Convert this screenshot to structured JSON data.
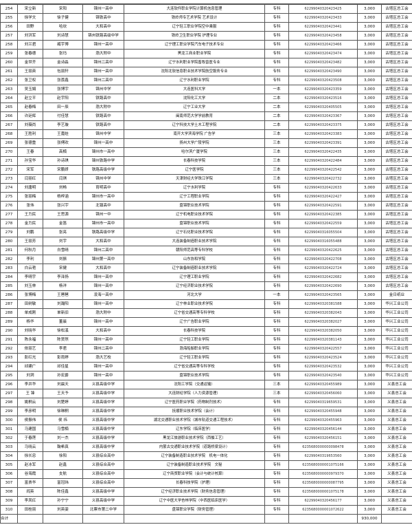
{
  "columns": [
    "no",
    "name",
    "parent",
    "high_school",
    "university_major",
    "level",
    "account",
    "amount",
    "union"
  ],
  "rows": [
    [
      "254",
      "宋立新",
      "宋阳",
      "锦州一高中",
      "大连软件职业学院计算机信息管理",
      "专科",
      "62299040320423425",
      "3,000",
      "古塔区总工会"
    ],
    [
      "255",
      "徐学文",
      "徐子健",
      "锦铁高中",
      "铁岭师专艺术学院 艺术设计",
      "专科",
      "62299040320423433",
      "3,000",
      "古塔区总工会"
    ],
    [
      "256",
      "田野",
      "哈欣",
      "大和高中",
      "辽宁轻工职业学院空中乘服",
      "专科",
      "62299040320423441",
      "3,000",
      "古塔区总工会"
    ],
    [
      "257",
      "刘洪军",
      "刘诗慧",
      "锦州铁路高级中学",
      "铁岭卫生职业学院 护理专业",
      "专科",
      "62299040320423458",
      "3,000",
      "古塔区总工会"
    ],
    [
      "258",
      "刘兰君",
      "臧宇博",
      "锦州一高中",
      "辽宁理工职业学院汽车电子技术专业",
      "专科",
      "62299040320423466",
      "3,000",
      "古塔区总工会"
    ],
    [
      "259",
      "张春德",
      "张玛",
      "渤大附中",
      "黑龙工商业职业学院",
      "专科",
      "62299040320423474",
      "3,000",
      "古塔区总工会"
    ],
    [
      "260",
      "金世齐",
      "金诗淼",
      "锦州二高中",
      "辽宁水利职业学院畜牧兽医专业",
      "专科",
      "62299040320423482",
      "3,000",
      "古塔区总工会"
    ],
    [
      "261",
      "王丽英",
      "包丽轩",
      "锦州一高中",
      "沈阳北软信息职业技术学院航空服务专业",
      "专科",
      "62299040320423490",
      "3,000",
      "古塔区总工会"
    ],
    [
      "262",
      "张卫权",
      "张荔鑫",
      "锦州二高中",
      "辽宁水利职业学院",
      "专科",
      "62299040320423508",
      "3,000",
      "古塔区总工会"
    ],
    [
      "263",
      "吴玉娟",
      "张博宇",
      "锦州中学",
      "大连医科大学",
      "一本",
      "62299040320423359",
      "3,000",
      "古塔区总工会"
    ],
    [
      "264",
      "赵立平",
      "赵宇阳",
      "铁路高中",
      "沈阳化工大学",
      "二本",
      "62299040320423516",
      "3,000",
      "古塔区总工会"
    ],
    [
      "265",
      "赵春梅",
      "田一辰",
      "渤大附中",
      "辽宁工业大学",
      "二本",
      "62299040320405505",
      "3,000",
      "古塔区总工会"
    ],
    [
      "266",
      "许廷辉",
      "付佳慧",
      "铁路高中",
      "闽南师范大学学前教育",
      "二本",
      "62299040320423367",
      "3,000",
      "古塔区总工会"
    ],
    [
      "267",
      "刘薇尚",
      "李艺璇",
      "铁路高中",
      "辽宁科技大学土木工程学院",
      "二本",
      "62299040320423375",
      "3,000",
      "古塔区总工会"
    ],
    [
      "268",
      "王胜利",
      "王嘉娃",
      "锦州中学",
      "南开大学滨海学院 广告学",
      "三本",
      "62299040320423383",
      "3,000",
      "古塔区总工会"
    ],
    [
      "269",
      "张德重",
      "张傅欢",
      "锦州一高中",
      "扬州大学广陵学院",
      "三本",
      "62299040320423391",
      "3,000",
      "古塔区总工会"
    ],
    [
      "270",
      "王春",
      "高楠",
      "锦州市一高中",
      "哈尔滨广厦学院",
      "三本",
      "62299040320422435",
      "3,000",
      "古塔区总工会"
    ],
    [
      "271",
      "孙宝华",
      "孙诗琪",
      "锦州铁路中学",
      "长春科技学院",
      "三本",
      "62299040320422484",
      "3,000",
      "古塔区总工会"
    ],
    [
      "272",
      "宋军",
      "宋鹏妍",
      "铁路高级中学",
      "辽宁医学院",
      "三本",
      "62299040320422542",
      "3,000",
      "古塔区总工会"
    ],
    [
      "273",
      "闫丽红",
      "闫琪",
      "锦州中学",
      "天津财经大学珠江学院",
      "三本",
      "62299040320422732",
      "3,000",
      "古塔区总工会"
    ],
    [
      "274",
      "刘唐明",
      "刘畅",
      "育明高中",
      "辽宁水利学院",
      "专科",
      "62299040320422633",
      "3,000",
      "古塔区总工会"
    ],
    [
      "275",
      "张丽梅",
      "杨梓涵",
      "锦州市一高中",
      "辽宁工程职业学院",
      "专科",
      "62299040320422427",
      "3,000",
      "古塔区总工会"
    ],
    [
      "276",
      "张伟",
      "张兴宇",
      "北镇高中",
      "盘锦职业技术学院",
      "专科",
      "62299040320422591",
      "3,000",
      "古塔区总工会"
    ],
    [
      "277",
      "王力民",
      "王思源",
      "锦州一中",
      "辽宁机电职业技术学院",
      "专科",
      "62299040320422385",
      "3,000",
      "古塔区总工会"
    ],
    [
      "278",
      "金力民",
      "金笛",
      "锦州市一高中",
      "盘锦职业技术学院",
      "专科",
      "62299040320422559",
      "3,000",
      "古塔区总工会"
    ],
    [
      "279",
      "刘鹏",
      "张亮",
      "铁路高级中学",
      "辽宁石化职业技术学院",
      "专科",
      "62299040316055504",
      "3,000",
      "古塔区总工会"
    ],
    [
      "280",
      "王丽芳",
      "刘宇",
      "大和高中",
      "大连装备制造职业技术学院",
      "专科",
      "62299040316055488",
      "3,000",
      "古塔区总工会"
    ],
    [
      "281",
      "何秋月",
      "白雪晴",
      "锦州二高中",
      "朝阳师范高等专科学校",
      "专科",
      "62299040320422625",
      "3,000",
      "古塔区总工会"
    ],
    [
      "282",
      "李利",
      "刘振",
      "锦州第一高中",
      "山东协和学院",
      "专科",
      "62299040320422708",
      "3,000",
      "古塔区总工会"
    ],
    [
      "283",
      "白云艳",
      "宋健",
      "大和高中",
      "辽宁装备制造职业技术学院",
      "专科",
      "62299040320422724",
      "3,000",
      "古塔区总工会"
    ],
    [
      "284",
      "李晴宇",
      "李泽扬",
      "锦州一高中",
      "辽宁理工职业学院",
      "专科",
      "62299040320422682",
      "3,000",
      "古塔区总工会"
    ],
    [
      "285",
      "刘玉林",
      "杨洋",
      "锦州一高中",
      "辽宁经济职业技术学院",
      "专科",
      "62299040320422690",
      "3,000",
      "古塔区总工会"
    ],
    [
      "286",
      "张博梅",
      "王琶琶",
      "凌海一高中",
      "河北大学",
      "一本",
      "62299040320423565",
      "3,000",
      "金日纸业"
    ],
    [
      "287",
      "田树敏",
      "刘瀚阳",
      "锦州一高中",
      "辽宁林业职业技术学院",
      "专科",
      "62299040320381588",
      "3,000",
      "华兴工业公司"
    ],
    [
      "288",
      "单成刚",
      "单新旧",
      "渤大附中",
      "辽宁省交通高等专科学校",
      "专科",
      "62299040320382043",
      "3,000",
      "华兴工业公司"
    ],
    [
      "289",
      "杨华",
      "董晨",
      "锦州一高中",
      "辽宁广告职业学院",
      "专科",
      "62299040320382027",
      "3,000",
      "华兴工业公司"
    ],
    [
      "290",
      "刘晓华",
      "徐松溪",
      "大和高中",
      "长春科技学院",
      "专科",
      "62299040320382050",
      "3,000",
      "华兴工业公司"
    ],
    [
      "291",
      "陈永福",
      "陈贺然",
      "锦州一高中",
      "辽宁轻工职业学院",
      "专科",
      "62299040320381143",
      "3,000",
      "华兴工业公司"
    ],
    [
      "292",
      "依丽艺",
      "李君",
      "锦州二高中",
      "渤海船舶职业学院",
      "专科",
      "62299040320422557",
      "3,000",
      "华兴工业公司"
    ],
    [
      "293",
      "彭红光",
      "彭雨婷",
      "渤大艺校",
      "辽宁轻工职业学院",
      "专科",
      "62299040320423524",
      "3,000",
      "华兴工业公司"
    ],
    [
      "294",
      "邱建广",
      "邱佳星",
      "锦州一高中",
      "辽宁省交通高等专科学校",
      "专科",
      "62299040320423532",
      "3,000",
      "华兴工业公司"
    ],
    [
      "295",
      "刘洞",
      "孙宏爵",
      "锦州一高中",
      "盘锦职业技术学院",
      "专科",
      "62299040320423540",
      "3,000",
      "华兴工业公司"
    ],
    [
      "296",
      "李井华",
      "刘晨天",
      "义县高级中学",
      "沈阳工学院（交通运输）",
      "三本",
      "62299040320455989",
      "3,000",
      "义县总工会"
    ],
    [
      "297",
      "王 锋",
      "王天予",
      "义县高级中学",
      "大连财经学院（人力资源管理）",
      "三本",
      "62299040320456060",
      "3,000",
      "义县总工会"
    ],
    [
      "298",
      "姚桐云",
      "刘楚婷",
      "义县高级中学",
      "辽宁医药职业学院（药物制剂技术）",
      "专科",
      "62299040319659531",
      "3,000",
      "义县总工会"
    ],
    [
      "299",
      "李彦明",
      "徐琳桐",
      "义县高级中学",
      "抚顺职业技术学院（会计）",
      "专科",
      "62299040320455948",
      "3,000",
      "义县总工会"
    ],
    [
      "300",
      "侯振伟",
      "侯 祎",
      "义县高级中学",
      "湖北交通职业技术学院（城市轨道交通工程技术）",
      "专科",
      "62299040320455963",
      "3,000",
      "义县总工会"
    ],
    [
      "301",
      "马建国",
      "马雪楠",
      "义县高级中学",
      "辽东学院（临床医学）",
      "专科",
      "62299040320456144",
      "3,000",
      "义县总工会"
    ],
    [
      "302",
      "于春莲",
      "刘一杰",
      "义县高级中学",
      "黑龙江旅游职业技术学院（西餐工艺）",
      "专科",
      "62299040320456151",
      "3,000",
      "义县总工会"
    ],
    [
      "303",
      "马晓云",
      "鞠希真",
      "义县高级中学",
      "内蒙古交通职业技术学院（道路桥梁设计）",
      "专科",
      "6235680000000098478",
      "3,000",
      "义县总工会"
    ],
    [
      "304",
      "徐长忠",
      "徐阳",
      "义县综合高中",
      "辽宁装备制造职业技术学院　机电一体化",
      "专科",
      "62299040319653560",
      "3,000",
      "义县总工会"
    ],
    [
      "305",
      "赵冰军",
      "赵鑫",
      "义县综合高中",
      "辽宁装备制造职业技术学院　文秘",
      "专科",
      "6235680000001075166",
      "3,000",
      "义县总工会"
    ],
    [
      "306",
      "谷海霞",
      "支航",
      "义县综合高中",
      "辽宁商贸职业学院（会计与统计核算）",
      "专科",
      "6235680000000979370",
      "3,000",
      "义县总工会"
    ],
    [
      "307",
      "富贵华",
      "富冠玮",
      "义县综合高中",
      "长春科技学院（护理）",
      "专科",
      "6235680000000087795",
      "3,000",
      "义县总工会"
    ],
    [
      "308",
      "阎英",
      "陈佳鑫",
      "义县高级中学",
      "辽宁经济职业技术学院（财务信息管理）",
      "专科",
      "6235680000001075178",
      "3,000",
      "义县总工会"
    ],
    [
      "309",
      "李凤红",
      "孙宁宁",
      "义县高级中学",
      "辽宁中医大学杏林学院（中西医临床医学）",
      "专科",
      "62299040320456177",
      "3,000",
      "义县总工会"
    ],
    [
      "310",
      "田桂丽",
      "刘英姿",
      "北票市第二中学",
      "盘锦职业学院（财务管理）",
      "专科",
      "6235680000001072622",
      "3,000",
      "义县总工会"
    ]
  ],
  "total": {
    "label": "合计",
    "amount": "930,000"
  }
}
